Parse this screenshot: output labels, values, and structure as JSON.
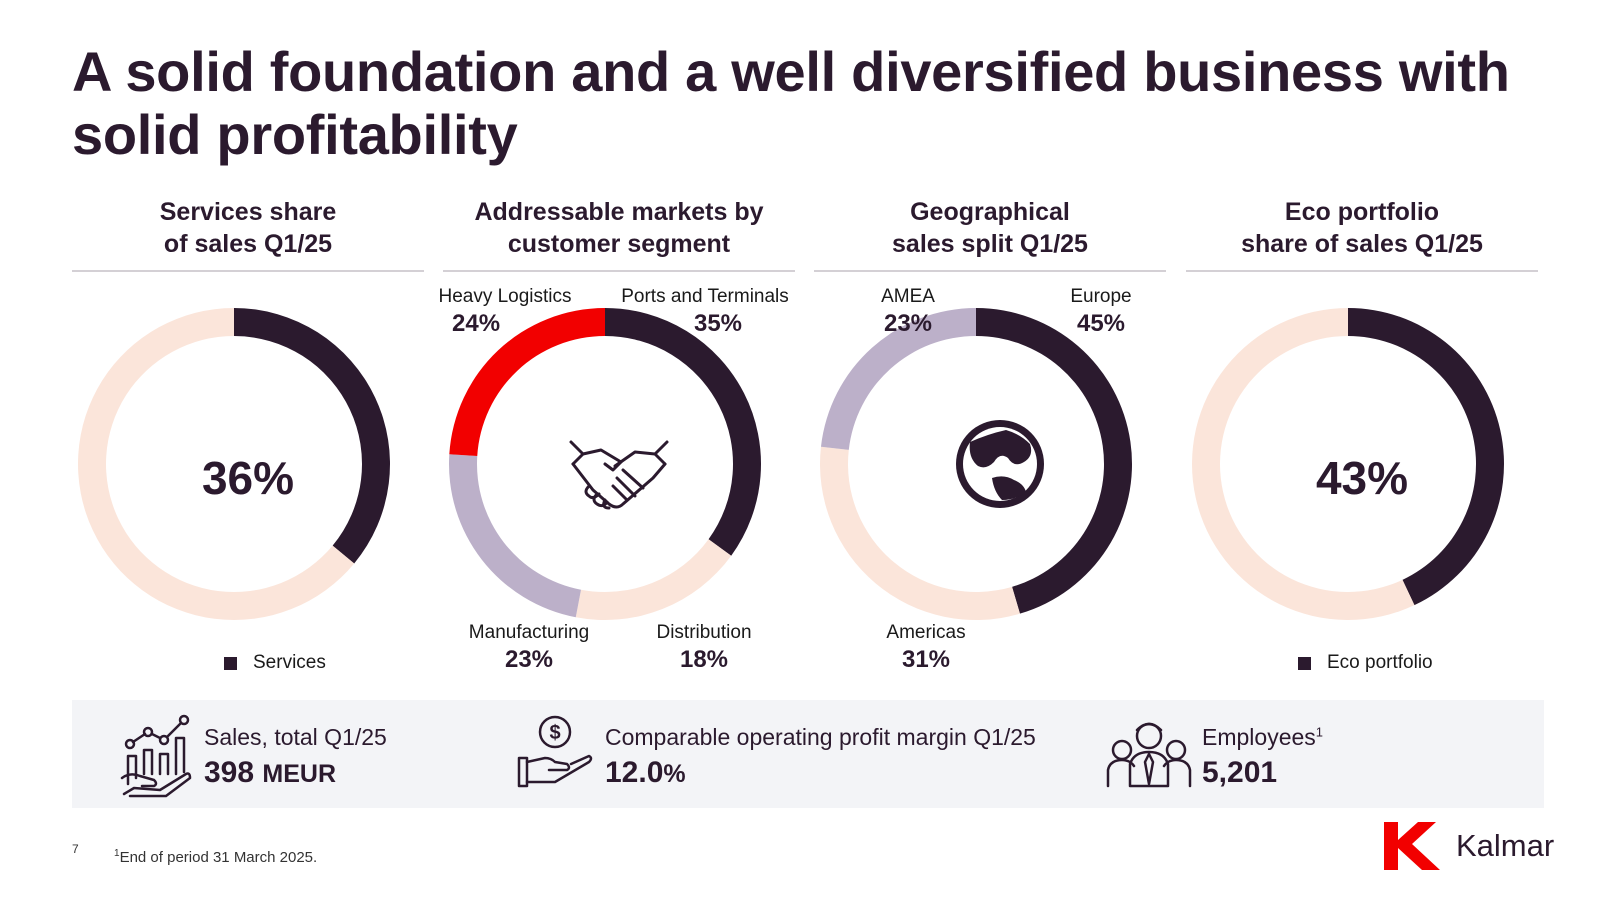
{
  "page": {
    "title": "A solid foundation and a well diversified business with solid profitability",
    "page_number": "7",
    "footnote_marker": "1",
    "footnote": "End of period 31 March 2025.",
    "brand": "Kalmar"
  },
  "colors": {
    "dark": "#2b1a2e",
    "peach": "#fbe5da",
    "lavender": "#bcb0c9",
    "red": "#f20000",
    "rule": "#d4d0d5",
    "kpi_bg": "#f3f4f7"
  },
  "panels": {
    "services": {
      "title_l1": "Services share",
      "title_l2": "of sales Q1/25",
      "center": "36%",
      "legend": "Services"
    },
    "markets": {
      "title_l1": "Addressable markets by",
      "title_l2": "customer segment",
      "icon": "handshake-icon"
    },
    "geo": {
      "title_l1": "Geographical",
      "title_l2": "sales split Q1/25",
      "icon": "globe-icon"
    },
    "eco": {
      "title_l1": "Eco portfolio",
      "title_l2": "share of sales Q1/25",
      "center": "43%",
      "legend": "Eco portfolio"
    }
  },
  "chart_data": [
    {
      "type": "pie",
      "title": "Services share of sales Q1/25",
      "categories": [
        "Services",
        ""
      ],
      "values": [
        36,
        64
      ],
      "colors": [
        "#2b1a2e",
        "#fbe5da"
      ],
      "legend": [
        "Services"
      ]
    },
    {
      "type": "pie",
      "title": "Addressable markets by customer segment",
      "categories": [
        "Ports and Terminals",
        "Distribution",
        "Manufacturing",
        "Heavy Logistics"
      ],
      "values": [
        35,
        18,
        23,
        24
      ],
      "labels": [
        "35%",
        "18%",
        "23%",
        "24%"
      ],
      "colors": [
        "#2b1a2e",
        "#fbe5da",
        "#bcb0c9",
        "#f20000"
      ]
    },
    {
      "type": "pie",
      "title": "Geographical sales split Q1/25",
      "categories": [
        "Europe",
        "Americas",
        "AMEA"
      ],
      "values": [
        45,
        31,
        23
      ],
      "labels": [
        "45%",
        "31%",
        "23%"
      ],
      "colors": [
        "#2b1a2e",
        "#fbe5da",
        "#bcb0c9"
      ]
    },
    {
      "type": "pie",
      "title": "Eco portfolio share of sales Q1/25",
      "categories": [
        "Eco portfolio",
        ""
      ],
      "values": [
        43,
        57
      ],
      "colors": [
        "#2b1a2e",
        "#fbe5da"
      ],
      "legend": [
        "Eco portfolio"
      ]
    }
  ],
  "kpis": {
    "sales": {
      "label": "Sales, total Q1/25",
      "value": "398",
      "unit": "MEUR",
      "icon": "growth-chart-icon"
    },
    "margin": {
      "label": "Comparable operating profit margin Q1/25",
      "value": "12.0",
      "unit": "%",
      "icon": "money-hand-icon"
    },
    "employees": {
      "label": "Employees",
      "sup": "1",
      "value": "5,201",
      "icon": "people-group-icon"
    }
  }
}
